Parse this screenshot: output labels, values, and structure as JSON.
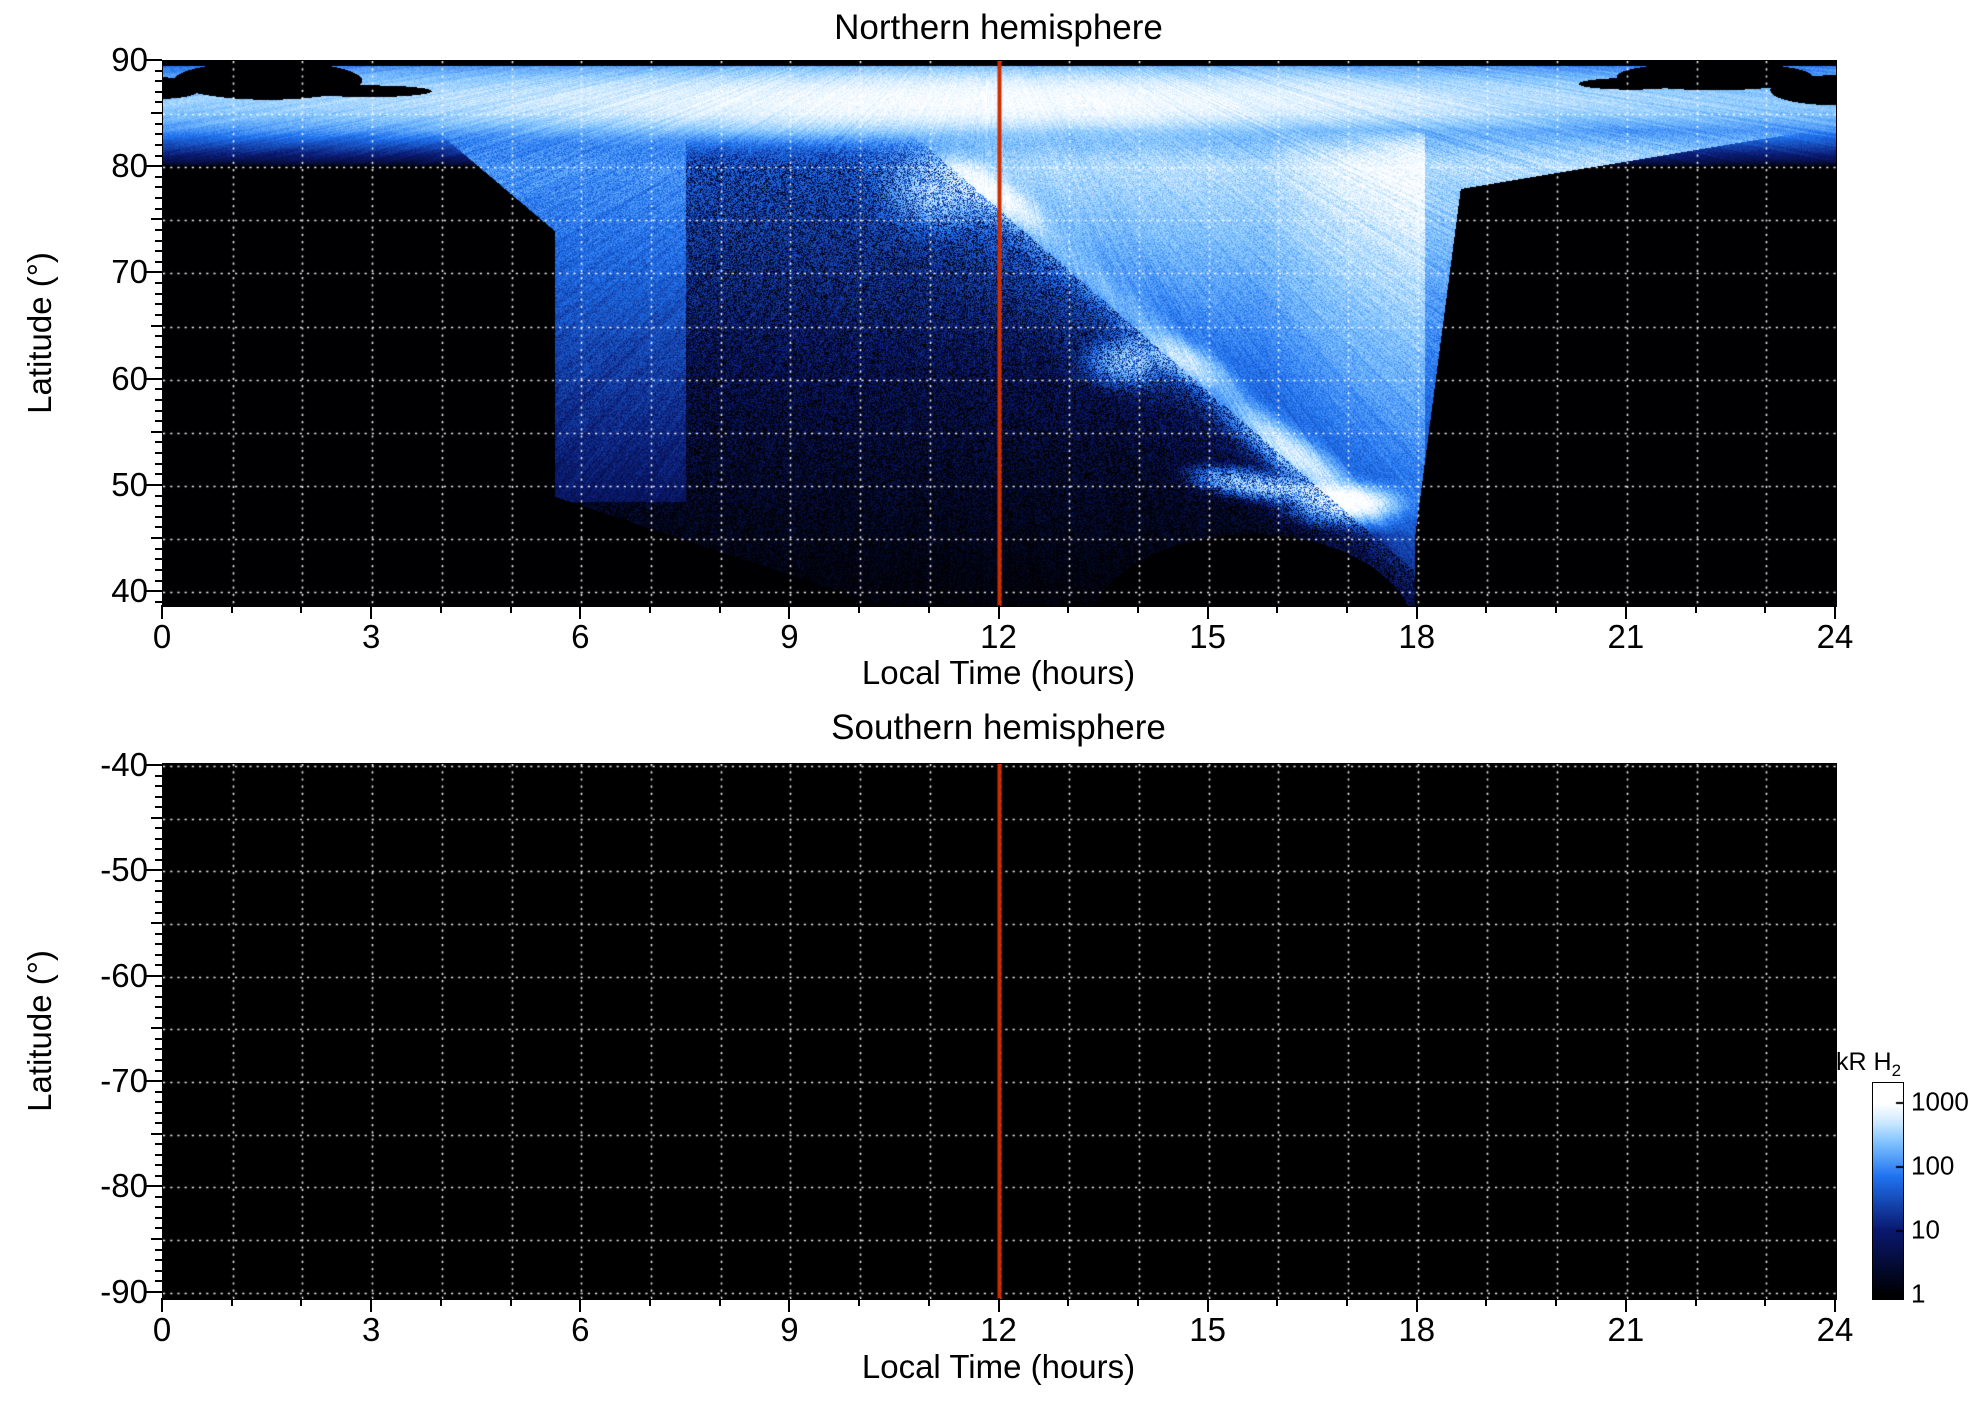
{
  "page": {
    "background": "#ffffff"
  },
  "chart_data": [
    {
      "type": "heatmap",
      "title": "Northern hemisphere",
      "xlabel": "Local Time (hours)",
      "ylabel": "Latitude (°)",
      "xlim": [
        0,
        24
      ],
      "ylim": [
        38.7,
        90
      ],
      "xtick_values": [
        0,
        3,
        6,
        9,
        12,
        15,
        18,
        21,
        24
      ],
      "xtick_labels": [
        "0",
        "3",
        "6",
        "9",
        "12",
        "15",
        "18",
        "21",
        "24"
      ],
      "ytick_values": [
        90,
        80,
        70,
        60,
        50,
        40
      ],
      "ytick_labels": [
        "90",
        "80",
        "70",
        "60",
        "50",
        "40"
      ],
      "grid": {
        "x_step": 1,
        "y_step": 5,
        "style": "dotted",
        "color": "#ffffff"
      },
      "marker_line": {
        "x": 12,
        "color": "#cc2e00"
      },
      "background": "#000000",
      "colormap": "black-blue-white, log scale 1 to 1000 kR H2",
      "features": [
        {
          "name": "polar_band",
          "lat_range": [
            83,
            90
          ],
          "time_range": [
            0,
            24
          ],
          "intensity_kR": "100-1000",
          "note": "bright light-blue band across all local times with fine radial streaks, black blobs near 1.5h and 22.3h at 87-89 deg"
        },
        {
          "name": "emission_fan",
          "lat_range": [
            40,
            83
          ],
          "time_range": [
            5.6,
            18
          ],
          "intensity_kR": "1-300",
          "note": "broad blue fan; brighter light-blue upper-right of main arc, dark speckled navy lower-left; sharp left edge at 5.6h above 49 deg"
        },
        {
          "name": "main_auroral_arc",
          "path_hours_lat": [
            [
              11,
              80
            ],
            [
              12.5,
              70
            ],
            [
              13.9,
              62
            ],
            [
              15.2,
              56
            ],
            [
              16.5,
              51
            ],
            [
              17.1,
              48.5
            ]
          ],
          "intensity_kR": "300-1000",
          "note": "white arc with bright blobs at (11.2h,78), (13.9h,62), (17h,48.5)"
        },
        {
          "name": "no_data_black",
          "note": "black outside fan below 83 deg (0-5.6h and 18-24h), lower-left below curve from (5.7h,49) to (9.7h,40), bottom-right ellipse around 15.6h below 45 deg"
        }
      ]
    },
    {
      "type": "heatmap",
      "title": "Southern hemisphere",
      "xlabel": "Local Time (hours)",
      "ylabel": "Latitude (°)",
      "xlim": [
        0,
        24
      ],
      "ylim": [
        -90.6,
        -39.8
      ],
      "xtick_values": [
        0,
        3,
        6,
        9,
        12,
        15,
        18,
        21,
        24
      ],
      "xtick_labels": [
        "0",
        "3",
        "6",
        "9",
        "12",
        "15",
        "18",
        "21",
        "24"
      ],
      "ytick_values": [
        -40,
        -50,
        -60,
        -70,
        -80,
        -90
      ],
      "ytick_labels": [
        "-40",
        "-50",
        "-60",
        "-70",
        "-80",
        "-90"
      ],
      "grid": {
        "x_step": 1,
        "y_step": 5,
        "style": "dotted",
        "color": "#ffffff"
      },
      "marker_line": {
        "x": 12,
        "color": "#cc2e00"
      },
      "background": "#000000",
      "colormap": "black-blue-white, log scale 1 to 1000 kR H2",
      "features": [
        {
          "name": "no_emission",
          "note": "entire panel black (no data / below 1 kR), only dotted grid and red 12h marker line visible"
        }
      ]
    }
  ],
  "colorbar": {
    "label": "kR H",
    "sub": "2",
    "scale": "log",
    "min": 1,
    "max": 1000,
    "tick_values": [
      1000,
      100,
      10,
      1
    ],
    "tick_labels": [
      "1000",
      "100",
      "10",
      "1"
    ]
  }
}
